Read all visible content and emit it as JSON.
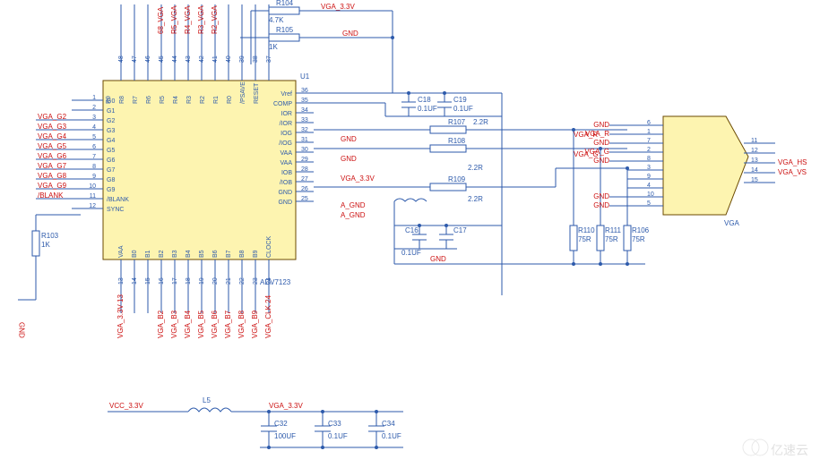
{
  "colors": {
    "wire": "#2d5aab",
    "chip_fill": "#fdf4b0",
    "chip_stroke": "#6b4a00",
    "net_red": "#c11b1b",
    "text_blue": "#2d5aab",
    "bg": "#ffffff"
  },
  "chip": {
    "ref": "U1",
    "part": "ADV7123",
    "left_pins": [
      {
        "num": "1",
        "name": "G0"
      },
      {
        "num": "2",
        "name": "G1"
      },
      {
        "num": "3",
        "name": "G2"
      },
      {
        "num": "4",
        "name": "G3"
      },
      {
        "num": "5",
        "name": "G4"
      },
      {
        "num": "6",
        "name": "G5"
      },
      {
        "num": "7",
        "name": "G6"
      },
      {
        "num": "8",
        "name": "G7"
      },
      {
        "num": "9",
        "name": "G8"
      },
      {
        "num": "10",
        "name": "G9"
      },
      {
        "num": "11",
        "name": "/BLANK"
      },
      {
        "num": "12",
        "name": "SYNC"
      }
    ],
    "left_nets": [
      "",
      "",
      "VGA_G2",
      "VGA_G3",
      "VGA_G4",
      "VGA_G5",
      "VGA_G6",
      "VGA_G7",
      "VGA_G8",
      "VGA_G9",
      "/BLANK",
      ""
    ],
    "right_pins": [
      {
        "num": "36",
        "name": "Vref"
      },
      {
        "num": "35",
        "name": "COMP"
      },
      {
        "num": "34",
        "name": "IOR"
      },
      {
        "num": "33",
        "name": "/IOR"
      },
      {
        "num": "32",
        "name": "IOG"
      },
      {
        "num": "31",
        "name": "/IOG"
      },
      {
        "num": "30",
        "name": "VAA"
      },
      {
        "num": "29",
        "name": "VAA"
      },
      {
        "num": "28",
        "name": "IOB"
      },
      {
        "num": "27",
        "name": "/IOB"
      },
      {
        "num": "26",
        "name": "GND"
      },
      {
        "num": "25",
        "name": "GND"
      }
    ],
    "right_nets": [
      "",
      "",
      "",
      "GND",
      "",
      "GND",
      "",
      "VGA_3.3V",
      "",
      "",
      "A_GND",
      "A_GND"
    ],
    "top_pins": [
      {
        "num": "48",
        "name": "R9"
      },
      {
        "num": "47",
        "name": "R8"
      },
      {
        "num": "46",
        "name": "R7"
      },
      {
        "num": "45",
        "name": "R6"
      },
      {
        "num": "44",
        "name": "R5"
      },
      {
        "num": "43",
        "name": "R4"
      },
      {
        "num": "42",
        "name": "R3"
      },
      {
        "num": "41",
        "name": "R2"
      },
      {
        "num": "40",
        "name": "R1"
      },
      {
        "num": "39",
        "name": "R0"
      },
      {
        "num": "38",
        "name": "/PSAVE"
      },
      {
        "num": "37",
        "name": "RESET"
      }
    ],
    "top_nets": [
      "",
      "",
      "",
      "68_VGA",
      "R5_VGA",
      "R4_VGA",
      "R3_VGA",
      "R2_VGA",
      "",
      "",
      "",
      ""
    ],
    "bottom_pins": [
      {
        "num": "13",
        "name": "VAA"
      },
      {
        "num": "14",
        "name": "B0"
      },
      {
        "num": "15",
        "name": "B1"
      },
      {
        "num": "16",
        "name": "B2"
      },
      {
        "num": "17",
        "name": "B3"
      },
      {
        "num": "18",
        "name": "B4"
      },
      {
        "num": "19",
        "name": "B5"
      },
      {
        "num": "20",
        "name": "B6"
      },
      {
        "num": "21",
        "name": "B7"
      },
      {
        "num": "22",
        "name": "B8"
      },
      {
        "num": "23",
        "name": "B9"
      },
      {
        "num": "24",
        "name": "CLOCK"
      }
    ],
    "bottom_nets": [
      "VGA_3.3V 13",
      "",
      "",
      "VGA_B2",
      "VGA_B3",
      "VGA_B4",
      "VGA_B5",
      "VGA_B6",
      "VGA_B7",
      "VGA_B8",
      "VGA_B9",
      "VGA_CLK 24"
    ]
  },
  "resistors": {
    "R103": {
      "ref": "R103",
      "val": "1K"
    },
    "R104": {
      "ref": "R104",
      "val": "4.7K",
      "net": "VGA_3.3V"
    },
    "R105": {
      "ref": "R105",
      "val": "1K",
      "net": "GND"
    },
    "R107": {
      "ref": "R107",
      "val": "2.2R"
    },
    "R108": {
      "ref": "R108",
      "val": "2.2R"
    },
    "R109": {
      "ref": "R109",
      "val": "2.2R"
    },
    "R110": {
      "ref": "R110",
      "val": "75R"
    },
    "R111": {
      "ref": "R111",
      "val": "75R"
    },
    "R106": {
      "ref": "R106",
      "val": "75R"
    }
  },
  "caps": {
    "C18": {
      "ref": "C18",
      "val": "0.1UF"
    },
    "C19": {
      "ref": "C19",
      "val": "0.1UF"
    },
    "C16": {
      "ref": "C16",
      "val": "0.1UF"
    },
    "C17": {
      "ref": "C17",
      "val": "0.1UF",
      "net": "GND"
    },
    "C32": {
      "ref": "C32",
      "val": "100UF"
    },
    "C33": {
      "ref": "C33",
      "val": "0.1UF"
    },
    "C34": {
      "ref": "C34",
      "val": "0.1UF"
    }
  },
  "inductor": {
    "L5": {
      "ref": "L5"
    }
  },
  "power_filter": {
    "in_net": "VCC_3.3V",
    "out_net": "VGA_3.3V"
  },
  "connector": {
    "ref": "VGA",
    "left_pins": [
      {
        "num": "6",
        "net": "GND"
      },
      {
        "num": "1",
        "net": "VGA_R"
      },
      {
        "num": "7",
        "net": "GND"
      },
      {
        "num": "2",
        "net": "VGA_G"
      },
      {
        "num": "8",
        "net": "GND"
      },
      {
        "num": "3",
        "net": ""
      },
      {
        "num": "9",
        "net": ""
      },
      {
        "num": "4",
        "net": ""
      },
      {
        "num": "10",
        "net": "GND"
      },
      {
        "num": "5",
        "net": "GND"
      }
    ],
    "right_pins": [
      {
        "num": "11",
        "net": ""
      },
      {
        "num": "12",
        "net": ""
      },
      {
        "num": "13",
        "net": "VGA_HS"
      },
      {
        "num": "14",
        "net": "VGA_VS"
      },
      {
        "num": "15",
        "net": ""
      }
    ]
  },
  "watermark": "亿速云",
  "nets_text": {
    "gnd": "GND",
    "agnd": "A_GND",
    "vga33": "VGA_3.3V",
    "vga_r": "VGA_R",
    "vga_g": "VGA_G",
    "vga_hs": "VGA_HS",
    "vga_vs": "VGA_VS"
  }
}
